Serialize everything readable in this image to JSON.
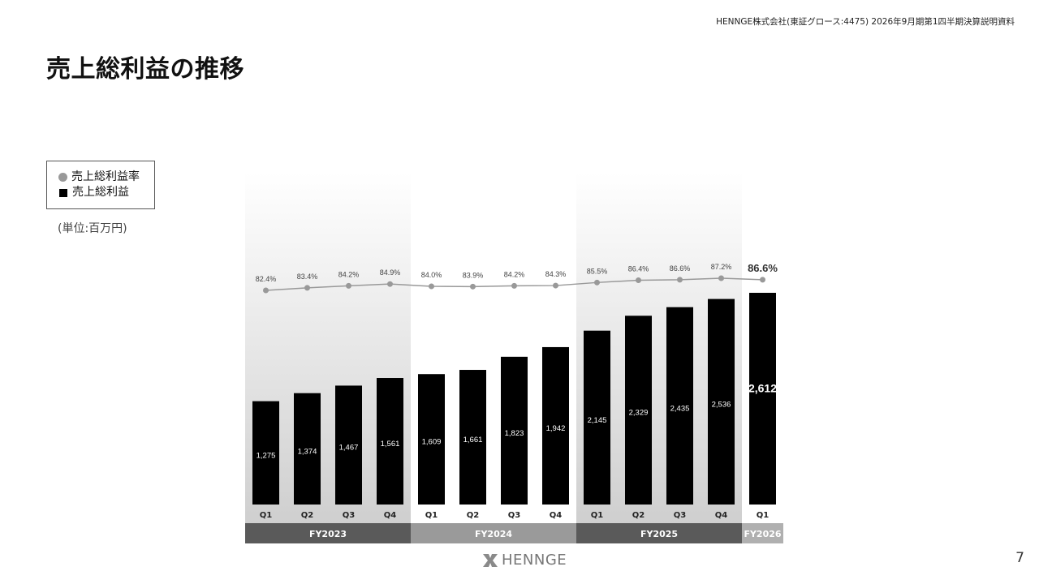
{
  "header": {
    "note": "HENNGE株式会社(東証グロース:4475) 2026年9月期第1四半期決算説明資料"
  },
  "title": "売上総利益の推移",
  "legend": {
    "rate_label": "売上総利益率",
    "profit_label": "売上総利益"
  },
  "unit_note": "(単位:百万円)",
  "colors": {
    "bar": "#000000",
    "line": "#999999",
    "fy2023_band": "#5a5a5a",
    "fy2024_band": "#9a9a9a",
    "fy2025_band": "#5a5a5a",
    "fy2026_band": "#b0b0b0"
  },
  "chart_data": {
    "type": "bar",
    "categories": [
      "Q1",
      "Q2",
      "Q3",
      "Q4",
      "Q1",
      "Q2",
      "Q3",
      "Q4",
      "Q1",
      "Q2",
      "Q3",
      "Q4",
      "Q1"
    ],
    "fiscal_years": [
      {
        "label": "FY2023",
        "count": 4
      },
      {
        "label": "FY2024",
        "count": 4
      },
      {
        "label": "FY2025",
        "count": 4
      },
      {
        "label": "FY2026",
        "count": 1
      }
    ],
    "series": [
      {
        "name": "売上総利益",
        "type": "bar",
        "values": [
          1275,
          1374,
          1467,
          1561,
          1609,
          1661,
          1823,
          1942,
          2145,
          2329,
          2435,
          2536,
          2612
        ],
        "labels": [
          "1,275",
          "1,374",
          "1,467",
          "1,561",
          "1,609",
          "1,661",
          "1,823",
          "1,942",
          "2,145",
          "2,329",
          "2,435",
          "2,536",
          "2,612"
        ]
      },
      {
        "name": "売上総利益率",
        "type": "line",
        "values": [
          82.4,
          83.4,
          84.2,
          84.9,
          84.0,
          83.9,
          84.2,
          84.3,
          85.5,
          86.4,
          86.6,
          87.2,
          86.6
        ],
        "labels": [
          "82.4%",
          "83.4%",
          "84.2%",
          "84.9%",
          "84.0%",
          "83.9%",
          "84.2%",
          "84.3%",
          "85.5%",
          "86.4%",
          "86.6%",
          "87.2%",
          "86.6%"
        ]
      }
    ],
    "highlight_last": true
  },
  "footer": {
    "logo_text": "HENNGE",
    "page_number": "7"
  }
}
